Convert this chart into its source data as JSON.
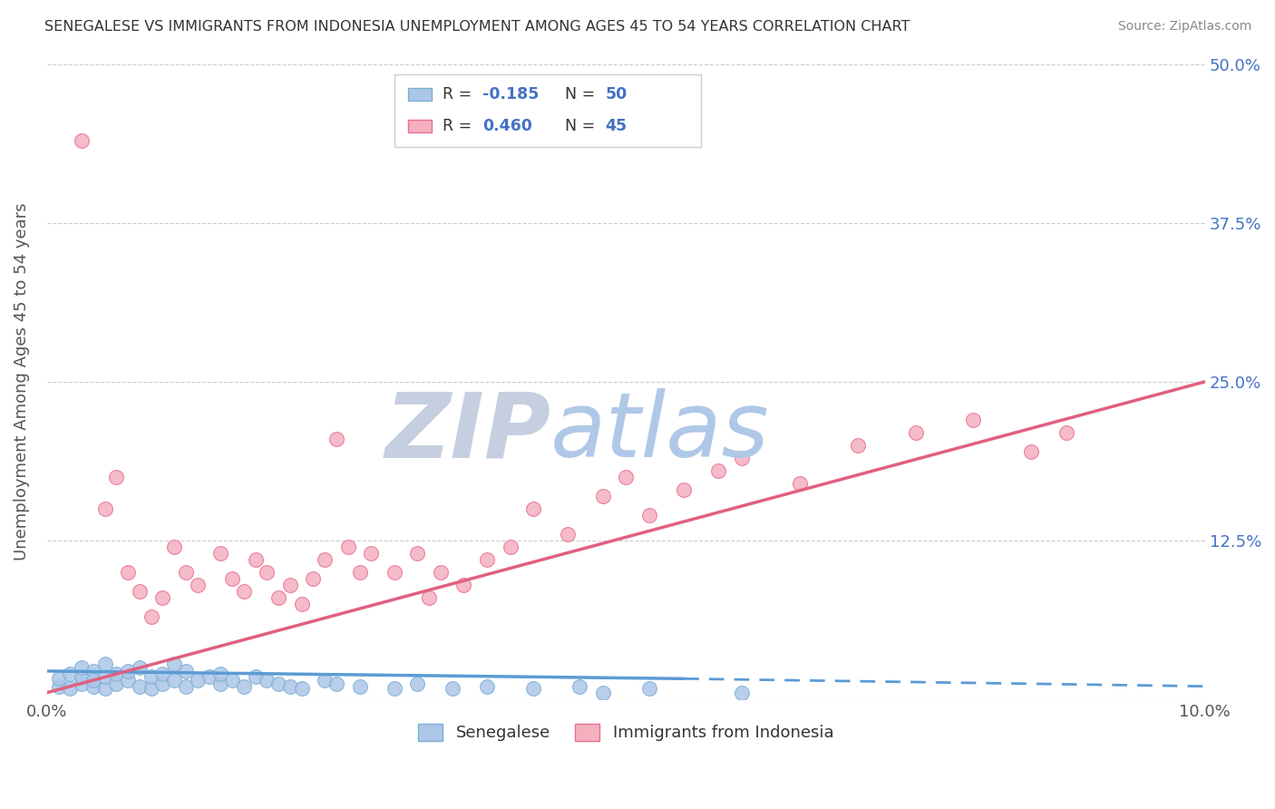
{
  "title": "SENEGALESE VS IMMIGRANTS FROM INDONESIA UNEMPLOYMENT AMONG AGES 45 TO 54 YEARS CORRELATION CHART",
  "source": "Source: ZipAtlas.com",
  "ylabel": "Unemployment Among Ages 45 to 54 years",
  "xlim": [
    0.0,
    0.1
  ],
  "ylim": [
    0.0,
    0.5
  ],
  "xticks": [
    0.0,
    0.02,
    0.04,
    0.06,
    0.08,
    0.1
  ],
  "xtick_labels": [
    "0.0%",
    "",
    "",
    "",
    "",
    "10.0%"
  ],
  "yticks": [
    0.0,
    0.125,
    0.25,
    0.375,
    0.5
  ],
  "ytick_labels": [
    "",
    "12.5%",
    "25.0%",
    "37.5%",
    "50.0%"
  ],
  "series1_color": "#adc6e8",
  "series1_edge": "#7bafd4",
  "series2_color": "#f5b0c0",
  "series2_edge": "#e87090",
  "line1_color": "#5b9bd5",
  "line2_color": "#e06080",
  "watermark_zip": "ZIP",
  "watermark_atlas": "atlas",
  "watermark_color_zip": "#c5cfe0",
  "watermark_color_atlas": "#b0c8e8",
  "legend_label1": "Senegalese",
  "legend_label2": "Immigrants from Indonesia",
  "r1": -0.185,
  "n1": 50,
  "r2": 0.46,
  "n2": 45,
  "blue_line_x": [
    0.0,
    0.055,
    0.1
  ],
  "blue_line_y_solid_end": 0.055,
  "blue_line_y0": 0.022,
  "blue_line_y1_solid": 0.016,
  "blue_line_y1_dash": 0.01,
  "pink_line_x0": 0.0,
  "pink_line_x1": 0.1,
  "pink_line_y0": 0.005,
  "pink_line_y1": 0.25,
  "blue_points_x": [
    0.001,
    0.001,
    0.002,
    0.002,
    0.003,
    0.003,
    0.003,
    0.004,
    0.004,
    0.004,
    0.005,
    0.005,
    0.005,
    0.006,
    0.006,
    0.007,
    0.007,
    0.008,
    0.008,
    0.009,
    0.009,
    0.01,
    0.01,
    0.011,
    0.011,
    0.012,
    0.012,
    0.013,
    0.014,
    0.015,
    0.015,
    0.016,
    0.017,
    0.018,
    0.019,
    0.02,
    0.021,
    0.022,
    0.024,
    0.025,
    0.027,
    0.03,
    0.032,
    0.035,
    0.038,
    0.042,
    0.046,
    0.048,
    0.052,
    0.06
  ],
  "blue_points_y": [
    0.01,
    0.016,
    0.008,
    0.02,
    0.012,
    0.018,
    0.025,
    0.01,
    0.022,
    0.015,
    0.008,
    0.018,
    0.028,
    0.012,
    0.02,
    0.015,
    0.022,
    0.01,
    0.025,
    0.008,
    0.018,
    0.012,
    0.02,
    0.015,
    0.028,
    0.01,
    0.022,
    0.015,
    0.018,
    0.012,
    0.02,
    0.015,
    0.01,
    0.018,
    0.015,
    0.012,
    0.01,
    0.008,
    0.015,
    0.012,
    0.01,
    0.008,
    0.012,
    0.008,
    0.01,
    0.008,
    0.01,
    0.005,
    0.008,
    0.005
  ],
  "pink_points_x": [
    0.003,
    0.005,
    0.006,
    0.007,
    0.008,
    0.009,
    0.01,
    0.011,
    0.012,
    0.013,
    0.015,
    0.016,
    0.017,
    0.018,
    0.019,
    0.02,
    0.021,
    0.022,
    0.023,
    0.024,
    0.025,
    0.026,
    0.027,
    0.028,
    0.03,
    0.032,
    0.033,
    0.034,
    0.036,
    0.038,
    0.04,
    0.042,
    0.045,
    0.048,
    0.05,
    0.052,
    0.055,
    0.058,
    0.06,
    0.065,
    0.07,
    0.075,
    0.08,
    0.085,
    0.088
  ],
  "pink_points_y": [
    0.44,
    0.15,
    0.175,
    0.1,
    0.085,
    0.065,
    0.08,
    0.12,
    0.1,
    0.09,
    0.115,
    0.095,
    0.085,
    0.11,
    0.1,
    0.08,
    0.09,
    0.075,
    0.095,
    0.11,
    0.205,
    0.12,
    0.1,
    0.115,
    0.1,
    0.115,
    0.08,
    0.1,
    0.09,
    0.11,
    0.12,
    0.15,
    0.13,
    0.16,
    0.175,
    0.145,
    0.165,
    0.18,
    0.19,
    0.17,
    0.2,
    0.21,
    0.22,
    0.195,
    0.21
  ]
}
